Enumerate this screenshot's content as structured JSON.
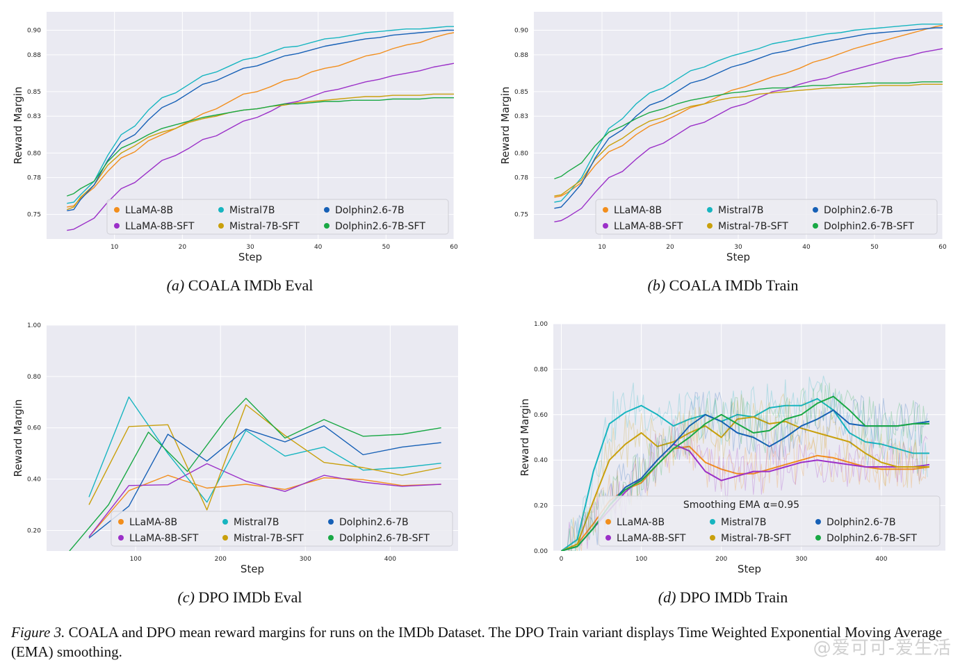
{
  "figure_caption": {
    "label": "Figure 3.",
    "text": "COALA and DPO mean reward margins for runs on the IMDb Dataset. The DPO Train variant displays Time Weighted Exponential Moving Average (EMA) smoothing."
  },
  "watermark": "@爱可可-爱生活",
  "colors": {
    "LLaMA-8B": "#f28e1c",
    "LLaMA-8B-SFT": "#9b30c8",
    "Mistral7B": "#17b5c0",
    "Mistral-7B-SFT": "#c9a00c",
    "Dolphin2.6-7B": "#1660b6",
    "Dolphin2.6-7B-SFT": "#19a845",
    "plot_bg": "#eaeaf2",
    "grid": "#ffffff"
  },
  "chart_data": [
    {
      "id": "a",
      "type": "line",
      "caption_tag": "(a)",
      "caption": "COALA IMDb Eval",
      "xlabel": "Step",
      "ylabel": "Reward Margin",
      "xlim": [
        0,
        60
      ],
      "ylim": [
        0.73,
        0.915
      ],
      "xticks": [
        10,
        20,
        30,
        40,
        50,
        60
      ],
      "xtick_labels": [
        "10",
        "20",
        "30",
        "40",
        "50",
        "60"
      ],
      "yticks": [
        0.75,
        0.78,
        0.8,
        0.83,
        0.85,
        0.88,
        0.9
      ],
      "ytick_labels": [
        "0.75",
        "0.78",
        "0.80",
        "0.83",
        "0.85",
        "0.88",
        "0.90"
      ],
      "grid": true,
      "legend": {
        "position": "bottom-right",
        "entries": [
          "LLaMA-8B",
          "Mistral7B",
          "Dolphin2.6-7B",
          "LLaMA-8B-SFT",
          "Mistral-7B-SFT",
          "Dolphin2.6-7B-SFT"
        ]
      },
      "x": [
        3,
        4,
        5,
        7,
        9,
        11,
        13,
        15,
        17,
        19,
        21,
        23,
        25,
        27,
        29,
        31,
        33,
        35,
        37,
        39,
        41,
        43,
        45,
        47,
        49,
        51,
        53,
        55,
        57,
        59,
        60
      ],
      "series": [
        {
          "name": "LLaMA-8B",
          "values": [
            0.756,
            0.757,
            0.763,
            0.772,
            0.785,
            0.796,
            0.801,
            0.81,
            0.815,
            0.82,
            0.826,
            0.832,
            0.836,
            0.842,
            0.848,
            0.85,
            0.854,
            0.859,
            0.861,
            0.866,
            0.869,
            0.871,
            0.875,
            0.879,
            0.881,
            0.885,
            0.888,
            0.89,
            0.894,
            0.897,
            0.898
          ]
        },
        {
          "name": "LLaMA-8B-SFT",
          "values": [
            0.737,
            0.738,
            0.741,
            0.747,
            0.76,
            0.771,
            0.776,
            0.785,
            0.794,
            0.798,
            0.804,
            0.811,
            0.814,
            0.82,
            0.826,
            0.829,
            0.834,
            0.84,
            0.842,
            0.846,
            0.85,
            0.852,
            0.855,
            0.858,
            0.86,
            0.863,
            0.865,
            0.867,
            0.87,
            0.872,
            0.873
          ]
        },
        {
          "name": "Mistral7B",
          "values": [
            0.759,
            0.76,
            0.766,
            0.777,
            0.798,
            0.815,
            0.822,
            0.835,
            0.845,
            0.849,
            0.856,
            0.863,
            0.866,
            0.871,
            0.876,
            0.878,
            0.882,
            0.886,
            0.887,
            0.89,
            0.893,
            0.894,
            0.896,
            0.898,
            0.899,
            0.9,
            0.901,
            0.901,
            0.902,
            0.903,
            0.903
          ]
        },
        {
          "name": "Mistral-7B-SFT",
          "values": [
            0.754,
            0.756,
            0.764,
            0.774,
            0.79,
            0.8,
            0.806,
            0.813,
            0.817,
            0.82,
            0.825,
            0.828,
            0.83,
            0.833,
            0.835,
            0.836,
            0.838,
            0.839,
            0.841,
            0.842,
            0.843,
            0.844,
            0.845,
            0.846,
            0.846,
            0.847,
            0.847,
            0.847,
            0.848,
            0.848,
            0.848
          ]
        },
        {
          "name": "Dolphin2.6-7B",
          "values": [
            0.753,
            0.754,
            0.762,
            0.774,
            0.794,
            0.809,
            0.815,
            0.827,
            0.837,
            0.842,
            0.849,
            0.856,
            0.859,
            0.864,
            0.869,
            0.871,
            0.875,
            0.879,
            0.881,
            0.884,
            0.887,
            0.889,
            0.891,
            0.893,
            0.894,
            0.896,
            0.897,
            0.898,
            0.899,
            0.9,
            0.9
          ]
        },
        {
          "name": "Dolphin2.6-7B-SFT",
          "values": [
            0.765,
            0.767,
            0.771,
            0.777,
            0.793,
            0.804,
            0.809,
            0.815,
            0.82,
            0.823,
            0.826,
            0.829,
            0.831,
            0.833,
            0.835,
            0.836,
            0.838,
            0.84,
            0.84,
            0.841,
            0.842,
            0.842,
            0.843,
            0.843,
            0.843,
            0.844,
            0.844,
            0.844,
            0.845,
            0.845,
            0.845
          ]
        }
      ]
    },
    {
      "id": "b",
      "type": "line",
      "caption_tag": "(b)",
      "caption": "COALA IMDb Train",
      "xlabel": "Step",
      "ylabel": "Reward Margin",
      "xlim": [
        0,
        60
      ],
      "ylim": [
        0.73,
        0.915
      ],
      "xticks": [
        10,
        20,
        30,
        40,
        50,
        60
      ],
      "xtick_labels": [
        "10",
        "20",
        "30",
        "40",
        "50",
        "60"
      ],
      "yticks": [
        0.75,
        0.78,
        0.8,
        0.83,
        0.85,
        0.88,
        0.9
      ],
      "ytick_labels": [
        "0.75",
        "0.78",
        "0.80",
        "0.83",
        "0.85",
        "0.88",
        "0.90"
      ],
      "grid": true,
      "legend": {
        "position": "bottom-right",
        "entries": [
          "LLaMA-8B",
          "Mistral7B",
          "Dolphin2.6-7B",
          "LLaMA-8B-SFT",
          "Mistral-7B-SFT",
          "Dolphin2.6-7B-SFT"
        ]
      },
      "x": [
        3,
        4,
        5,
        7,
        9,
        11,
        13,
        15,
        17,
        19,
        21,
        23,
        25,
        27,
        29,
        31,
        33,
        35,
        37,
        39,
        41,
        43,
        45,
        47,
        49,
        51,
        53,
        55,
        57,
        59,
        60
      ],
      "series": [
        {
          "name": "LLaMA-8B",
          "values": [
            0.764,
            0.765,
            0.768,
            0.776,
            0.79,
            0.801,
            0.806,
            0.815,
            0.822,
            0.826,
            0.831,
            0.837,
            0.84,
            0.846,
            0.851,
            0.854,
            0.858,
            0.862,
            0.865,
            0.869,
            0.874,
            0.877,
            0.881,
            0.885,
            0.888,
            0.891,
            0.894,
            0.897,
            0.9,
            0.903,
            0.904
          ]
        },
        {
          "name": "LLaMA-8B-SFT",
          "values": [
            0.744,
            0.745,
            0.748,
            0.755,
            0.768,
            0.78,
            0.785,
            0.795,
            0.804,
            0.808,
            0.815,
            0.822,
            0.825,
            0.831,
            0.837,
            0.84,
            0.845,
            0.85,
            0.852,
            0.856,
            0.859,
            0.861,
            0.865,
            0.868,
            0.871,
            0.874,
            0.877,
            0.879,
            0.882,
            0.884,
            0.885
          ]
        },
        {
          "name": "Mistral7B",
          "values": [
            0.76,
            0.761,
            0.767,
            0.78,
            0.801,
            0.82,
            0.828,
            0.84,
            0.849,
            0.853,
            0.86,
            0.867,
            0.87,
            0.875,
            0.879,
            0.882,
            0.885,
            0.889,
            0.891,
            0.893,
            0.895,
            0.897,
            0.898,
            0.9,
            0.901,
            0.902,
            0.903,
            0.904,
            0.905,
            0.905,
            0.905
          ]
        },
        {
          "name": "Mistral-7B-SFT",
          "values": [
            0.765,
            0.766,
            0.77,
            0.778,
            0.795,
            0.806,
            0.812,
            0.82,
            0.826,
            0.829,
            0.834,
            0.838,
            0.84,
            0.843,
            0.845,
            0.846,
            0.848,
            0.849,
            0.85,
            0.851,
            0.852,
            0.853,
            0.853,
            0.854,
            0.854,
            0.855,
            0.855,
            0.855,
            0.856,
            0.856,
            0.856
          ]
        },
        {
          "name": "Dolphin2.6-7B",
          "values": [
            0.755,
            0.756,
            0.762,
            0.775,
            0.796,
            0.812,
            0.819,
            0.83,
            0.839,
            0.843,
            0.85,
            0.857,
            0.86,
            0.865,
            0.87,
            0.873,
            0.877,
            0.881,
            0.883,
            0.886,
            0.889,
            0.891,
            0.893,
            0.895,
            0.897,
            0.898,
            0.899,
            0.9,
            0.901,
            0.902,
            0.902
          ]
        },
        {
          "name": "Dolphin2.6-7B-SFT",
          "values": [
            0.779,
            0.781,
            0.785,
            0.792,
            0.806,
            0.817,
            0.822,
            0.828,
            0.833,
            0.836,
            0.84,
            0.843,
            0.845,
            0.847,
            0.849,
            0.85,
            0.852,
            0.853,
            0.853,
            0.854,
            0.855,
            0.855,
            0.856,
            0.856,
            0.857,
            0.857,
            0.857,
            0.857,
            0.858,
            0.858,
            0.858
          ]
        }
      ]
    },
    {
      "id": "c",
      "type": "line",
      "caption_tag": "(c)",
      "caption": "DPO IMDb Eval",
      "xlabel": "Step",
      "ylabel": "Reward Margin",
      "xlim": [
        -5,
        480
      ],
      "ylim": [
        0.12,
        1.0
      ],
      "xticks": [
        100,
        200,
        300,
        400
      ],
      "xtick_labels": [
        "100",
        "200",
        "300",
        "400"
      ],
      "yticks": [
        0.2,
        0.4,
        0.6,
        0.8,
        1.0
      ],
      "ytick_labels": [
        "0.20",
        "0.40",
        "0.60",
        "0.80",
        "1.00"
      ],
      "grid": true,
      "legend": {
        "position": "bottom-right",
        "entries": [
          "LLaMA-8B",
          "Mistral7B",
          "Dolphin2.6-7B",
          "LLaMA-8B-SFT",
          "Mistral-7B-SFT",
          "Dolphin2.6-7B-SFT"
        ]
      },
      "series": [
        {
          "name": "LLaMA-8B",
          "x": [
            45,
            92,
            138,
            184,
            230,
            276,
            322,
            368,
            414,
            460
          ],
          "values": [
            0.175,
            0.355,
            0.415,
            0.365,
            0.38,
            0.36,
            0.405,
            0.398,
            0.375,
            0.38
          ]
        },
        {
          "name": "LLaMA-8B-SFT",
          "x": [
            45,
            92,
            138,
            184,
            230,
            276,
            322,
            368,
            414,
            460
          ],
          "values": [
            0.175,
            0.375,
            0.378,
            0.46,
            0.392,
            0.352,
            0.415,
            0.388,
            0.372,
            0.38
          ]
        },
        {
          "name": "Mistral7B",
          "x": [
            45,
            92,
            138,
            184,
            230,
            276,
            322,
            368,
            414,
            460
          ],
          "values": [
            0.33,
            0.72,
            0.5,
            0.31,
            0.59,
            0.49,
            0.525,
            0.435,
            0.445,
            0.462
          ]
        },
        {
          "name": "Mistral-7B-SFT",
          "x": [
            45,
            92,
            138,
            184,
            230,
            276,
            322,
            368,
            414,
            460
          ],
          "values": [
            0.3,
            0.605,
            0.612,
            0.28,
            0.69,
            0.57,
            0.465,
            0.445,
            0.415,
            0.445
          ]
        },
        {
          "name": "Dolphin2.6-7B",
          "x": [
            45,
            92,
            138,
            184,
            230,
            276,
            322,
            368,
            414,
            460
          ],
          "values": [
            0.17,
            0.295,
            0.575,
            0.47,
            0.595,
            0.545,
            0.608,
            0.495,
            0.525,
            0.542
          ]
        },
        {
          "name": "Dolphin2.6-7B-SFT",
          "x": [
            22,
            68,
            115,
            161,
            207,
            230,
            276,
            322,
            368,
            414,
            460
          ],
          "values": [
            0.12,
            0.3,
            0.583,
            0.43,
            0.635,
            0.715,
            0.56,
            0.632,
            0.567,
            0.575,
            0.6
          ]
        }
      ]
    },
    {
      "id": "d",
      "type": "line",
      "caption_tag": "(d)",
      "caption": "DPO IMDb Train",
      "xlabel": "Step",
      "ylabel": "Reward Margin",
      "xlim": [
        -10,
        480
      ],
      "ylim": [
        0.0,
        1.0
      ],
      "xticks": [
        0,
        100,
        200,
        300,
        400
      ],
      "xtick_labels": [
        "0",
        "100",
        "200",
        "300",
        "400"
      ],
      "yticks": [
        0.0,
        0.2,
        0.4,
        0.6,
        0.8,
        1.0
      ],
      "ytick_labels": [
        "0.00",
        "0.20",
        "0.40",
        "0.60",
        "0.80",
        "1.00"
      ],
      "grid": true,
      "smoothing": "EMA",
      "legend": {
        "position": "bottom-right",
        "title": "Smoothing EMA α=0.95",
        "entries": [
          "LLaMA-8B",
          "Mistral7B",
          "Dolphin2.6-7B",
          "LLaMA-8B-SFT",
          "Mistral-7B-SFT",
          "Dolphin2.6-7B-SFT"
        ]
      },
      "x": [
        0,
        20,
        40,
        60,
        80,
        100,
        120,
        140,
        160,
        180,
        200,
        220,
        240,
        260,
        280,
        300,
        320,
        340,
        360,
        380,
        400,
        420,
        440,
        460
      ],
      "series": [
        {
          "name": "LLaMA-8B",
          "values": [
            0.0,
            0.03,
            0.12,
            0.22,
            0.27,
            0.3,
            0.38,
            0.45,
            0.46,
            0.39,
            0.36,
            0.34,
            0.34,
            0.36,
            0.38,
            0.4,
            0.42,
            0.41,
            0.39,
            0.37,
            0.36,
            0.36,
            0.36,
            0.37
          ]
        },
        {
          "name": "LLaMA-8B-SFT",
          "values": [
            0.0,
            0.02,
            0.1,
            0.18,
            0.26,
            0.32,
            0.4,
            0.47,
            0.44,
            0.35,
            0.31,
            0.33,
            0.35,
            0.35,
            0.37,
            0.39,
            0.4,
            0.39,
            0.38,
            0.37,
            0.37,
            0.37,
            0.37,
            0.38
          ]
        },
        {
          "name": "Mistral7B",
          "values": [
            0.0,
            0.05,
            0.35,
            0.56,
            0.61,
            0.64,
            0.6,
            0.55,
            0.58,
            0.6,
            0.57,
            0.6,
            0.59,
            0.63,
            0.64,
            0.64,
            0.67,
            0.62,
            0.52,
            0.48,
            0.47,
            0.45,
            0.43,
            0.43
          ]
        },
        {
          "name": "Mistral-7B-SFT",
          "values": [
            0.0,
            0.03,
            0.22,
            0.4,
            0.47,
            0.52,
            0.46,
            0.48,
            0.52,
            0.55,
            0.5,
            0.58,
            0.59,
            0.56,
            0.57,
            0.54,
            0.52,
            0.5,
            0.48,
            0.43,
            0.39,
            0.37,
            0.37,
            0.37
          ]
        },
        {
          "name": "Dolphin2.6-7B",
          "values": [
            0.0,
            0.02,
            0.1,
            0.2,
            0.28,
            0.32,
            0.4,
            0.47,
            0.55,
            0.6,
            0.57,
            0.52,
            0.5,
            0.46,
            0.5,
            0.55,
            0.58,
            0.62,
            0.56,
            0.55,
            0.55,
            0.55,
            0.56,
            0.57
          ]
        },
        {
          "name": "Dolphin2.6-7B-SFT",
          "values": [
            0.0,
            0.02,
            0.1,
            0.2,
            0.27,
            0.31,
            0.38,
            0.45,
            0.5,
            0.56,
            0.6,
            0.56,
            0.52,
            0.53,
            0.58,
            0.6,
            0.65,
            0.68,
            0.62,
            0.55,
            0.55,
            0.55,
            0.56,
            0.56
          ]
        }
      ]
    }
  ]
}
